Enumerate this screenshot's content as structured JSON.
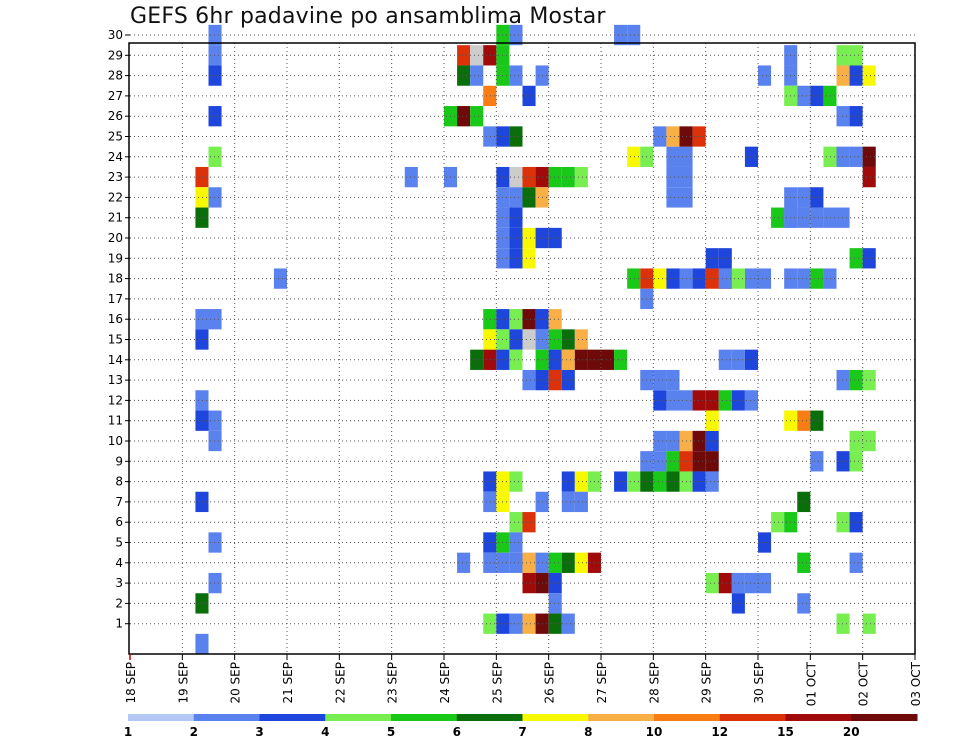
{
  "chart_data": {
    "type": "heatmap",
    "title": "GEFS 6hr padavine po ansamblima Mostar",
    "xlabel": "",
    "ylabel": "",
    "x_ticks": [
      "18 SEP",
      "19 SEP",
      "20 SEP",
      "21 SEP",
      "22 SEP",
      "23 SEP",
      "24 SEP",
      "25 SEP",
      "26 SEP",
      "27 SEP",
      "28 SEP",
      "29 SEP",
      "30 SEP",
      "01 OCT",
      "02 OCT",
      "03 OCT"
    ],
    "y_ticks": [
      "1",
      "2",
      "3",
      "4",
      "5",
      "6",
      "7",
      "8",
      "9",
      "10",
      "11",
      "12",
      "13",
      "14",
      "15",
      "16",
      "17",
      "18",
      "19",
      "20",
      "21",
      "22",
      "23",
      "24",
      "25",
      "26",
      "27",
      "28",
      "29",
      "30"
    ],
    "x_range": [
      0,
      60
    ],
    "x_steps_per_day": 4,
    "y_range": [
      0,
      30
    ],
    "grid": true,
    "legend": {
      "placement": "bottom",
      "labels": [
        "1",
        "2",
        "3",
        "4",
        "5",
        "6",
        "7",
        "8",
        "10",
        "12",
        "15",
        "20"
      ],
      "colors": [
        "#b4c8f5",
        "#5a82ee",
        "#1e46dc",
        "#78ee50",
        "#19c819",
        "#0a6e0a",
        "#f8f800",
        "#f8b046",
        "#f87d14",
        "#dc320a",
        "#a00a0a",
        "#6e0a0a"
      ]
    },
    "cells": [
      [
        6,
        30,
        1
      ],
      [
        6,
        29,
        1
      ],
      [
        6,
        28,
        2
      ],
      [
        6,
        26,
        2
      ],
      [
        6,
        24,
        3
      ],
      [
        5,
        23,
        9
      ],
      [
        5,
        22,
        6
      ],
      [
        6,
        22,
        1
      ],
      [
        5,
        21,
        5
      ],
      [
        5,
        16,
        1
      ],
      [
        6,
        16,
        1
      ],
      [
        5,
        15,
        2
      ],
      [
        5,
        12,
        1
      ],
      [
        5,
        11,
        2
      ],
      [
        6,
        11,
        1
      ],
      [
        6,
        10,
        1
      ],
      [
        5,
        7,
        2
      ],
      [
        6,
        5,
        1
      ],
      [
        6,
        3,
        1
      ],
      [
        5,
        2,
        5
      ],
      [
        5,
        0,
        1
      ],
      [
        11,
        18,
        1
      ],
      [
        25,
        29,
        9
      ],
      [
        26,
        29,
        12
      ],
      [
        27,
        29,
        10
      ],
      [
        28,
        29,
        4
      ],
      [
        28,
        30,
        4
      ],
      [
        29,
        30,
        1
      ],
      [
        25,
        28,
        5
      ],
      [
        26,
        28,
        1
      ],
      [
        28,
        28,
        4
      ],
      [
        29,
        28,
        1
      ],
      [
        31,
        28,
        1
      ],
      [
        27,
        27,
        8
      ],
      [
        30,
        27,
        2
      ],
      [
        24,
        26,
        4
      ],
      [
        25,
        26,
        11
      ],
      [
        26,
        26,
        4
      ],
      [
        27,
        25,
        1
      ],
      [
        28,
        25,
        2
      ],
      [
        29,
        25,
        5
      ],
      [
        21,
        23,
        1
      ],
      [
        24,
        23,
        1
      ],
      [
        28,
        23,
        2
      ],
      [
        29,
        23,
        12
      ],
      [
        30,
        23,
        9
      ],
      [
        31,
        23,
        10
      ],
      [
        32,
        23,
        4
      ],
      [
        33,
        23,
        4
      ],
      [
        34,
        23,
        3
      ],
      [
        28,
        22,
        1
      ],
      [
        29,
        22,
        1
      ],
      [
        30,
        22,
        5
      ],
      [
        31,
        22,
        7
      ],
      [
        28,
        21,
        1
      ],
      [
        29,
        21,
        2
      ],
      [
        28,
        20,
        1
      ],
      [
        29,
        20,
        2
      ],
      [
        30,
        20,
        6
      ],
      [
        31,
        20,
        2
      ],
      [
        32,
        20,
        2
      ],
      [
        28,
        19,
        1
      ],
      [
        29,
        19,
        2
      ],
      [
        30,
        19,
        6
      ],
      [
        27,
        16,
        4
      ],
      [
        28,
        16,
        2
      ],
      [
        29,
        16,
        3
      ],
      [
        30,
        16,
        11
      ],
      [
        31,
        16,
        2
      ],
      [
        32,
        16,
        7
      ],
      [
        27,
        15,
        6
      ],
      [
        28,
        15,
        3
      ],
      [
        29,
        15,
        2
      ],
      [
        30,
        15,
        12
      ],
      [
        31,
        15,
        1
      ],
      [
        32,
        15,
        4
      ],
      [
        33,
        15,
        5
      ],
      [
        34,
        15,
        7
      ],
      [
        26,
        14,
        5
      ],
      [
        27,
        14,
        10
      ],
      [
        28,
        14,
        2
      ],
      [
        29,
        14,
        3
      ],
      [
        31,
        14,
        4
      ],
      [
        32,
        14,
        2
      ],
      [
        33,
        14,
        7
      ],
      [
        34,
        14,
        11
      ],
      [
        35,
        14,
        11
      ],
      [
        36,
        14,
        11
      ],
      [
        37,
        14,
        4
      ],
      [
        30,
        13,
        1
      ],
      [
        31,
        13,
        2
      ],
      [
        32,
        13,
        9
      ],
      [
        33,
        13,
        2
      ],
      [
        27,
        8,
        2
      ],
      [
        28,
        8,
        6
      ],
      [
        29,
        8,
        3
      ],
      [
        33,
        8,
        2
      ],
      [
        34,
        8,
        6
      ],
      [
        35,
        8,
        3
      ],
      [
        27,
        7,
        1
      ],
      [
        28,
        7,
        6
      ],
      [
        31,
        7,
        1
      ],
      [
        33,
        7,
        1
      ],
      [
        34,
        7,
        1
      ],
      [
        29,
        6,
        3
      ],
      [
        30,
        6,
        9
      ],
      [
        27,
        5,
        2
      ],
      [
        28,
        5,
        4
      ],
      [
        29,
        5,
        1
      ],
      [
        25,
        4,
        1
      ],
      [
        27,
        4,
        1
      ],
      [
        28,
        4,
        1
      ],
      [
        29,
        4,
        1
      ],
      [
        30,
        4,
        7
      ],
      [
        31,
        4,
        1
      ],
      [
        32,
        4,
        4
      ],
      [
        33,
        4,
        5
      ],
      [
        34,
        4,
        6
      ],
      [
        35,
        4,
        10
      ],
      [
        30,
        3,
        10
      ],
      [
        31,
        3,
        11
      ],
      [
        32,
        3,
        2
      ],
      [
        32,
        2,
        1
      ],
      [
        27,
        1,
        3
      ],
      [
        28,
        1,
        2
      ],
      [
        29,
        1,
        1
      ],
      [
        30,
        1,
        7
      ],
      [
        31,
        1,
        11
      ],
      [
        32,
        1,
        5
      ],
      [
        33,
        1,
        1
      ],
      [
        38,
        24,
        6
      ],
      [
        39,
        24,
        3
      ],
      [
        41,
        24,
        1
      ],
      [
        42,
        24,
        1
      ],
      [
        41,
        23,
        1
      ],
      [
        42,
        23,
        1
      ],
      [
        41,
        22,
        1
      ],
      [
        42,
        22,
        1
      ],
      [
        38,
        18,
        4
      ],
      [
        39,
        18,
        9
      ],
      [
        40,
        18,
        6
      ],
      [
        41,
        18,
        2
      ],
      [
        42,
        18,
        1
      ],
      [
        43,
        18,
        2
      ],
      [
        44,
        18,
        9
      ],
      [
        45,
        18,
        10
      ],
      [
        39,
        17,
        1
      ],
      [
        40,
        10,
        1
      ],
      [
        41,
        10,
        1
      ],
      [
        42,
        10,
        7
      ],
      [
        43,
        10,
        11
      ],
      [
        44,
        10,
        2
      ],
      [
        39,
        9,
        1
      ],
      [
        40,
        9,
        1
      ],
      [
        41,
        9,
        4
      ],
      [
        42,
        9,
        9
      ],
      [
        43,
        9,
        11
      ],
      [
        44,
        9,
        11
      ],
      [
        37,
        8,
        2
      ],
      [
        38,
        8,
        3
      ],
      [
        39,
        8,
        5
      ],
      [
        40,
        8,
        4
      ],
      [
        41,
        8,
        5
      ],
      [
        42,
        8,
        3
      ],
      [
        43,
        8,
        2
      ],
      [
        44,
        8,
        1
      ],
      [
        40,
        12,
        2
      ],
      [
        41,
        12,
        1
      ],
      [
        42,
        12,
        1
      ],
      [
        43,
        12,
        10
      ],
      [
        44,
        12,
        10
      ],
      [
        45,
        12,
        4
      ],
      [
        46,
        12,
        2
      ],
      [
        47,
        12,
        1
      ],
      [
        39,
        13,
        1
      ],
      [
        40,
        13,
        1
      ],
      [
        41,
        13,
        1
      ],
      [
        37,
        30,
        1
      ],
      [
        38,
        30,
        1
      ],
      [
        40,
        25,
        1
      ],
      [
        41,
        25,
        7
      ],
      [
        42,
        25,
        11
      ],
      [
        43,
        25,
        9
      ],
      [
        45,
        18,
        1
      ],
      [
        46,
        18,
        3
      ],
      [
        47,
        18,
        1
      ],
      [
        44,
        19,
        2
      ],
      [
        45,
        19,
        2
      ],
      [
        45,
        14,
        1
      ],
      [
        46,
        14,
        1
      ],
      [
        47,
        14,
        2
      ],
      [
        44,
        11,
        6
      ],
      [
        44,
        3,
        3
      ],
      [
        45,
        3,
        10
      ],
      [
        46,
        3,
        1
      ],
      [
        47,
        3,
        1
      ],
      [
        48,
        3,
        1
      ],
      [
        46,
        2,
        2
      ],
      [
        47,
        24,
        2
      ],
      [
        48,
        5,
        2
      ],
      [
        48,
        28,
        1
      ],
      [
        50,
        29,
        1
      ],
      [
        50,
        28,
        1
      ],
      [
        50,
        27,
        3
      ],
      [
        51,
        27,
        1
      ],
      [
        52,
        27,
        2
      ],
      [
        53,
        27,
        4
      ],
      [
        50,
        22,
        1
      ],
      [
        51,
        22,
        1
      ],
      [
        50,
        21,
        1
      ],
      [
        51,
        21,
        1
      ],
      [
        49,
        21,
        4
      ],
      [
        50,
        21,
        1
      ],
      [
        52,
        22,
        2
      ],
      [
        52,
        21,
        1
      ],
      [
        53,
        21,
        1
      ],
      [
        54,
        21,
        1
      ],
      [
        50,
        18,
        1
      ],
      [
        51,
        18,
        1
      ],
      [
        52,
        18,
        4
      ],
      [
        53,
        18,
        1
      ],
      [
        48,
        18,
        1
      ],
      [
        50,
        11,
        6
      ],
      [
        51,
        11,
        8
      ],
      [
        52,
        11,
        5
      ],
      [
        49,
        6,
        3
      ],
      [
        50,
        6,
        4
      ],
      [
        51,
        7,
        5
      ],
      [
        51,
        4,
        4
      ],
      [
        51,
        2,
        1
      ],
      [
        52,
        9,
        1
      ],
      [
        53,
        24,
        3
      ],
      [
        54,
        24,
        1
      ],
      [
        55,
        24,
        1
      ],
      [
        56,
        24,
        11
      ],
      [
        56,
        23,
        10
      ],
      [
        54,
        29,
        3
      ],
      [
        55,
        29,
        3
      ],
      [
        54,
        28,
        7
      ],
      [
        55,
        28,
        2
      ],
      [
        56,
        28,
        6
      ],
      [
        54,
        26,
        1
      ],
      [
        55,
        26,
        2
      ],
      [
        55,
        19,
        4
      ],
      [
        56,
        19,
        2
      ],
      [
        54,
        13,
        1
      ],
      [
        55,
        13,
        4
      ],
      [
        56,
        13,
        3
      ],
      [
        55,
        10,
        3
      ],
      [
        56,
        10,
        3
      ],
      [
        54,
        9,
        2
      ],
      [
        55,
        9,
        3
      ],
      [
        54,
        6,
        3
      ],
      [
        55,
        6,
        2
      ],
      [
        55,
        4,
        1
      ],
      [
        54,
        1,
        3
      ],
      [
        56,
        1,
        3
      ]
    ]
  }
}
